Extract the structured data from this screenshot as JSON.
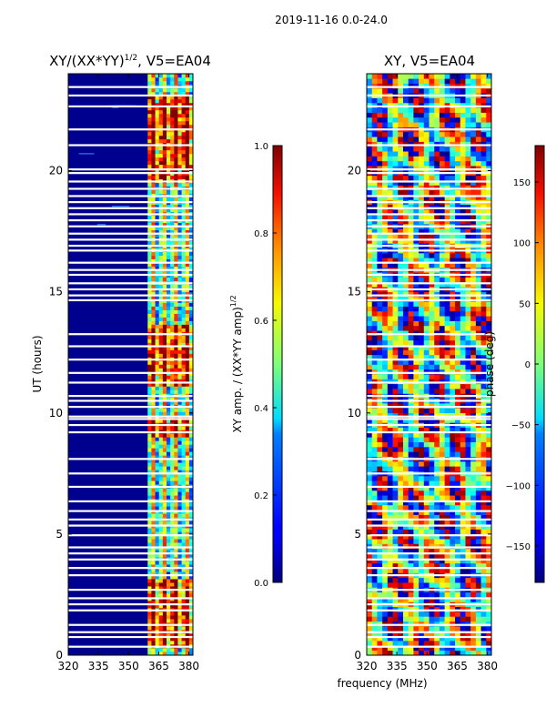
{
  "figure": {
    "suptitle": "2019-11-16 0.0-24.0",
    "shared_xlabel": "frequency (MHz)"
  },
  "chart_data": [
    {
      "type": "heatmap",
      "title_main": "XY/(XX*YY)",
      "title_exp": "1/2",
      "title_rest": ", V5=EA04",
      "xlabel": "",
      "ylabel": "UT (hours)",
      "xlim": [
        320,
        382
      ],
      "ylim": [
        0,
        24
      ],
      "xticks": [
        320,
        335,
        350,
        365,
        380
      ],
      "yticks": [
        0,
        5,
        10,
        15,
        20
      ],
      "colormap": "jet",
      "colorbar": {
        "label_main": "XY amp. / (XX*YY amp)",
        "label_exp": "1/2",
        "range": [
          0.0,
          1.0
        ],
        "ticks": [
          "0.0",
          "0.2",
          "0.4",
          "0.6",
          "0.8",
          "1.0"
        ]
      },
      "active_band_mhz": [
        359.5,
        382
      ],
      "high_amplitude_hours": [
        [
          0.3,
          3.0
        ],
        [
          9.0,
          9.8
        ],
        [
          11.0,
          13.5
        ],
        [
          19.5,
          23.0
        ]
      ]
    },
    {
      "type": "heatmap",
      "title_main": "XY, V5=EA04",
      "xlabel": "frequency (MHz)",
      "ylabel": "",
      "xlim": [
        320,
        382
      ],
      "ylim": [
        0,
        24
      ],
      "xticks": [
        320,
        335,
        350,
        365,
        380
      ],
      "yticks": [
        0,
        5,
        10,
        15,
        20
      ],
      "colormap": "jet",
      "colorbar": {
        "label_main": "phase (deg)",
        "range": [
          -180,
          180
        ],
        "ticks": [
          "150",
          "100",
          "50",
          "0",
          "−50",
          "−100",
          "−150"
        ],
        "tick_values": [
          150,
          100,
          50,
          0,
          -50,
          -100,
          -150
        ]
      }
    }
  ],
  "flagged_hours": [
    0.35,
    0.75,
    0.95,
    1.25,
    1.85,
    2.1,
    2.35,
    2.7,
    3.3,
    3.6,
    3.95,
    4.2,
    4.45,
    4.95,
    5.35,
    5.6,
    5.95,
    6.35,
    6.95,
    7.5,
    8.1,
    9.2,
    9.5,
    9.75,
    9.85,
    10.25,
    10.5,
    10.7,
    11.25,
    11.65,
    12.2,
    12.75,
    13.25,
    14.65,
    14.85,
    15.1,
    15.35,
    15.7,
    15.9,
    16.2,
    16.7,
    16.9,
    17.15,
    17.4,
    17.7,
    17.95,
    18.2,
    18.45,
    18.7,
    18.95,
    19.25,
    19.55,
    19.9,
    20.05,
    21.05,
    21.7,
    22.65,
    23.1,
    23.45
  ]
}
